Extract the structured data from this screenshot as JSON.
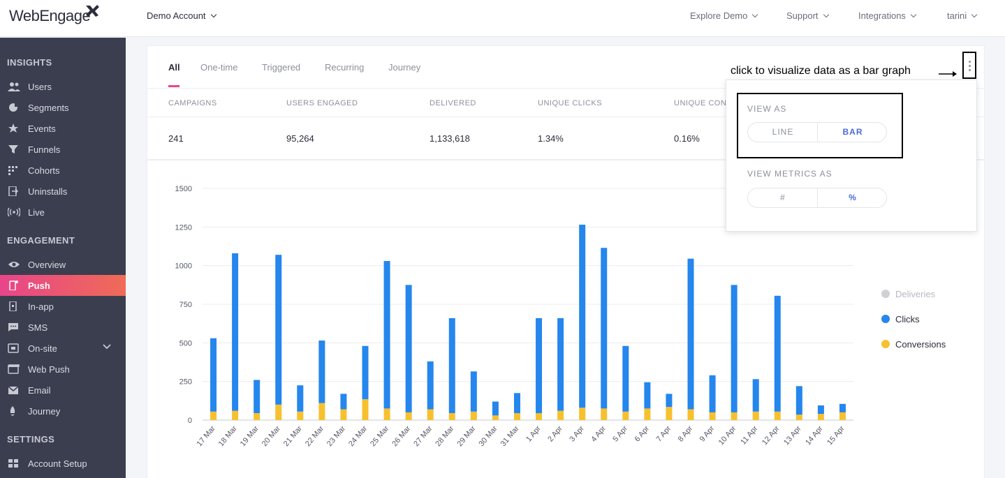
{
  "header": {
    "logo": "WebEngage",
    "account": "Demo Account",
    "nav": [
      "Explore Demo",
      "Support",
      "Integrations",
      "tarini"
    ]
  },
  "sidebar": {
    "sections": [
      {
        "title": "INSIGHTS",
        "items": [
          "Users",
          "Segments",
          "Events",
          "Funnels",
          "Cohorts",
          "Uninstalls",
          "Live"
        ]
      },
      {
        "title": "ENGAGEMENT",
        "items": [
          "Overview",
          "Push",
          "In-app",
          "SMS",
          "On-site",
          "Web Push",
          "Email",
          "Journey"
        ]
      },
      {
        "title": "SETTINGS",
        "items": [
          "Account Setup"
        ]
      }
    ],
    "active": "Push"
  },
  "tabs": [
    "All",
    "One-time",
    "Triggered",
    "Recurring",
    "Journey"
  ],
  "metrics": {
    "headers": [
      "CAMPAIGNS",
      "USERS ENGAGED",
      "DELIVERED",
      "UNIQUE CLICKS",
      "UNIQUE CONV"
    ],
    "values": [
      "241",
      "95,264",
      "1,133,618",
      "1.34%",
      "0.16%"
    ]
  },
  "annotation": "click to visualize data as a bar graph",
  "popover": {
    "view_as_title": "VIEW AS",
    "view_as_options": [
      "LINE",
      "BAR"
    ],
    "view_as_selected": "BAR",
    "metrics_title": "VIEW METRICS AS",
    "metrics_options": [
      "#",
      "%"
    ],
    "metrics_selected": "%"
  },
  "colors": {
    "accent": "#e8458a",
    "clicks": "#2586ee",
    "conversions": "#f7c02e",
    "deliveries": "#cfd0d4",
    "sidebar": "#3b3e4f"
  },
  "chart_data": {
    "type": "bar",
    "stacked": true,
    "categories": [
      "17 Mar",
      "18 Mar",
      "19 Mar",
      "20 Mar",
      "21 Mar",
      "22 Mar",
      "23 Mar",
      "24 Mar",
      "25 Mar",
      "26 Mar",
      "27 Mar",
      "28 Mar",
      "29 Mar",
      "30 Mar",
      "31 Mar",
      "1 Apr",
      "2 Apr",
      "3 Apr",
      "4 Apr",
      "5 Apr",
      "6 Apr",
      "7 Apr",
      "8 Apr",
      "9 Apr",
      "10 Apr",
      "11 Apr",
      "12 Apr",
      "13 Apr",
      "14 Apr",
      "15 Apr"
    ],
    "series": [
      {
        "name": "Conversions",
        "color": "#f7c02e",
        "values": [
          55,
          60,
          45,
          100,
          55,
          110,
          70,
          135,
          75,
          50,
          70,
          45,
          55,
          30,
          45,
          45,
          60,
          80,
          75,
          55,
          75,
          85,
          70,
          50,
          50,
          55,
          55,
          35,
          40,
          50
        ]
      },
      {
        "name": "Clicks",
        "color": "#2586ee",
        "values": [
          475,
          1020,
          215,
          970,
          170,
          405,
          100,
          345,
          955,
          825,
          310,
          615,
          260,
          90,
          130,
          615,
          600,
          1185,
          1040,
          425,
          170,
          85,
          975,
          240,
          825,
          210,
          750,
          185,
          55,
          55
        ]
      }
    ],
    "legend": [
      "Deliveries",
      "Clicks",
      "Conversions"
    ],
    "y_ticks": [
      0,
      250,
      500,
      750,
      1000,
      1250,
      1500
    ],
    "ylim": [
      0,
      1500
    ],
    "grid": true,
    "legend_position": "right"
  }
}
